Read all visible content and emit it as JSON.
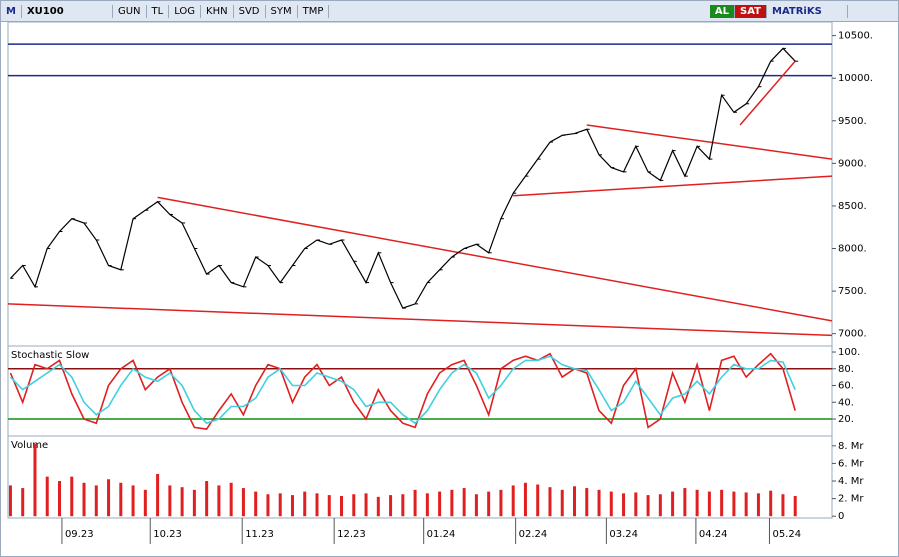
{
  "toolbar": {
    "symbol": "XU100",
    "buttons": [
      "GUN",
      "TL",
      "LOG",
      "KHN",
      "SVD",
      "SYM",
      "TMP"
    ],
    "buy": "AL",
    "sell": "SAT",
    "brand": "MATRiKS"
  },
  "chart_data": [
    {
      "type": "line",
      "color": "#000000",
      "ylim": [
        6867,
        10660
      ],
      "yticks": [
        {
          "value": 10500,
          "label": "10500."
        },
        {
          "value": 10000,
          "label": "10000."
        },
        {
          "value": 9500,
          "label": "9500."
        },
        {
          "value": 9000,
          "label": "9000."
        },
        {
          "value": 8500,
          "label": "8500."
        },
        {
          "value": 8000,
          "label": "8000."
        },
        {
          "value": 7500,
          "label": "7500."
        },
        {
          "value": 7000,
          "label": "7000."
        }
      ],
      "values": [
        7650,
        7800,
        7550,
        8000,
        8200,
        8350,
        8300,
        8100,
        7800,
        7750,
        8350,
        8450,
        8550,
        8400,
        8300,
        8000,
        7700,
        7800,
        7600,
        7550,
        7900,
        7800,
        7600,
        7800,
        8000,
        8100,
        8050,
        8100,
        7850,
        7600,
        7950,
        7600,
        7300,
        7350,
        7600,
        7750,
        7900,
        8000,
        8050,
        7950,
        8350,
        8650,
        8850,
        9050,
        9250,
        9330,
        9350,
        9400,
        9100,
        8950,
        8900,
        9200,
        8900,
        8800,
        9150,
        8850,
        9200,
        9050,
        9800,
        9600,
        9700,
        9900,
        10200,
        10350,
        10200
      ],
      "hlines": {
        "color": "#1c2a8c",
        "values": [
          10400,
          10030
        ]
      },
      "trendlines": {
        "color": "#e02020",
        "lines": [
          {
            "x": [
              12,
              67
            ],
            "y": [
              8600,
              7150
            ]
          },
          {
            "x": [
              -0.2,
              67
            ],
            "y": [
              7350,
              6980
            ]
          },
          {
            "x": [
              47,
              67
            ],
            "y": [
              9450,
              9050
            ]
          },
          {
            "x": [
              41,
              67
            ],
            "y": [
              8620,
              8850
            ]
          },
          {
            "x": [
              59.5,
              64
            ],
            "y": [
              9450,
              10200
            ]
          }
        ]
      }
    },
    {
      "type": "line",
      "title": "Stochastic Slow",
      "ylim": [
        4.5,
        106
      ],
      "yticks": [
        {
          "value": 100,
          "label": "100."
        },
        {
          "value": 80,
          "label": "80."
        },
        {
          "value": 60,
          "label": "60."
        },
        {
          "value": 40,
          "label": "40."
        },
        {
          "value": 20,
          "label": "20."
        }
      ],
      "levels": [
        {
          "value": 80,
          "color": "#8b1010"
        },
        {
          "value": 20,
          "color": "#109010"
        }
      ],
      "series": [
        {
          "color": "#e02020",
          "values": [
            75,
            40,
            85,
            80,
            90,
            50,
            20,
            15,
            60,
            80,
            90,
            55,
            70,
            80,
            40,
            10,
            8,
            30,
            50,
            25,
            60,
            85,
            80,
            40,
            70,
            85,
            60,
            70,
            40,
            20,
            55,
            30,
            15,
            10,
            50,
            75,
            85,
            90,
            60,
            25,
            80,
            90,
            95,
            90,
            98,
            70,
            80,
            75,
            30,
            15,
            60,
            80,
            10,
            20,
            75,
            40,
            85,
            30,
            90,
            95,
            70,
            85,
            98,
            80,
            30
          ]
        },
        {
          "color": "#40d0e0",
          "values": [
            70,
            55,
            65,
            75,
            85,
            70,
            40,
            25,
            35,
            60,
            80,
            70,
            65,
            75,
            60,
            30,
            15,
            20,
            35,
            35,
            45,
            70,
            80,
            60,
            60,
            75,
            70,
            65,
            55,
            35,
            40,
            40,
            25,
            15,
            30,
            55,
            75,
            85,
            75,
            45,
            60,
            80,
            90,
            90,
            95,
            85,
            80,
            78,
            55,
            30,
            40,
            65,
            45,
            25,
            45,
            50,
            65,
            50,
            70,
            85,
            80,
            80,
            90,
            88,
            55
          ]
        }
      ]
    },
    {
      "type": "bar",
      "title": "Volume",
      "color": "#e02020",
      "ylim": [
        -0.2,
        9
      ],
      "yticks": [
        {
          "value": 8,
          "label": "8. Mr"
        },
        {
          "value": 6,
          "label": "6. Mr"
        },
        {
          "value": 4,
          "label": "4. Mr"
        },
        {
          "value": 2,
          "label": "2. Mr"
        },
        0
      ],
      "values": [
        3.5,
        3.2,
        8.2,
        4.5,
        4.0,
        4.5,
        3.8,
        3.5,
        4.2,
        3.8,
        3.5,
        3.0,
        4.8,
        3.5,
        3.3,
        3.0,
        4.0,
        3.5,
        3.8,
        3.2,
        2.8,
        2.5,
        2.6,
        2.4,
        2.8,
        2.6,
        2.4,
        2.3,
        2.5,
        2.6,
        2.2,
        2.4,
        2.5,
        3.0,
        2.6,
        2.8,
        3.0,
        3.2,
        2.5,
        2.8,
        3.0,
        3.5,
        3.8,
        3.6,
        3.3,
        3.0,
        3.4,
        3.2,
        3.0,
        2.8,
        2.6,
        2.7,
        2.4,
        2.5,
        2.8,
        3.2,
        3.0,
        2.8,
        3.0,
        2.8,
        2.7,
        2.6,
        2.9,
        2.5,
        2.3
      ],
      "xlim": [
        -0.2,
        67
      ],
      "xticks": [
        {
          "value": 4.2,
          "label": "09.23"
        },
        {
          "value": 11.4,
          "label": "10.23"
        },
        {
          "value": 18.9,
          "label": "11.23"
        },
        {
          "value": 26.4,
          "label": "12.23"
        },
        {
          "value": 33.7,
          "label": "01.24"
        },
        {
          "value": 41.2,
          "label": "02.24"
        },
        {
          "value": 48.6,
          "label": "03.24"
        },
        {
          "value": 55.9,
          "label": "04.24"
        },
        {
          "value": 61.9,
          "label": "05.24"
        }
      ]
    }
  ]
}
